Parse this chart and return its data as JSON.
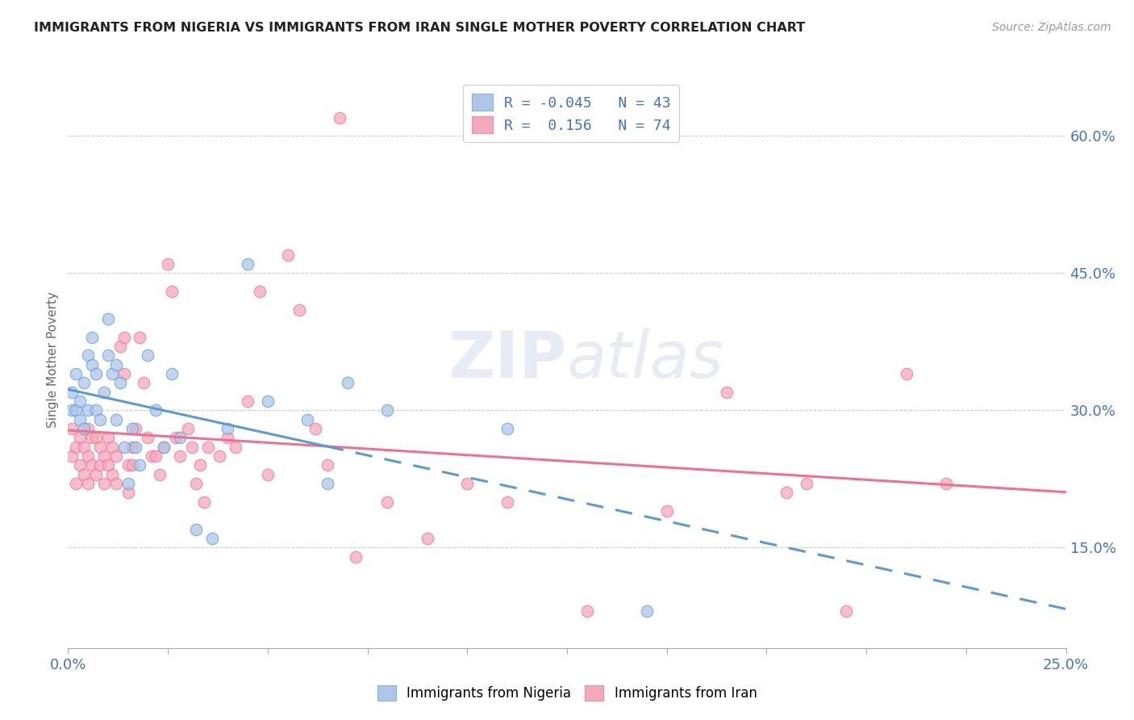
{
  "title": "IMMIGRANTS FROM NIGERIA VS IMMIGRANTS FROM IRAN SINGLE MOTHER POVERTY CORRELATION CHART",
  "source": "Source: ZipAtlas.com",
  "ylabel": "Single Mother Poverty",
  "y_ticks": [
    0.15,
    0.3,
    0.45,
    0.6
  ],
  "y_tick_labels": [
    "15.0%",
    "30.0%",
    "45.0%",
    "60.0%"
  ],
  "xlim": [
    0.0,
    0.25
  ],
  "ylim": [
    0.04,
    0.67
  ],
  "nigeria_R": -0.045,
  "nigeria_N": 43,
  "iran_R": 0.156,
  "iran_N": 74,
  "nigeria_color": "#aec6e8",
  "iran_color": "#f4a9bb",
  "nigeria_line_color": "#5b9bd5",
  "iran_line_color": "#f07090",
  "legend_label_nigeria": "Immigrants from Nigeria",
  "legend_label_iran": "Immigrants from Iran",
  "nigeria_x": [
    0.001,
    0.001,
    0.002,
    0.002,
    0.003,
    0.003,
    0.004,
    0.004,
    0.005,
    0.005,
    0.006,
    0.006,
    0.007,
    0.007,
    0.008,
    0.009,
    0.01,
    0.01,
    0.011,
    0.012,
    0.012,
    0.013,
    0.014,
    0.015,
    0.016,
    0.017,
    0.018,
    0.02,
    0.022,
    0.024,
    0.026,
    0.028,
    0.032,
    0.036,
    0.04,
    0.045,
    0.05,
    0.06,
    0.065,
    0.07,
    0.08,
    0.11,
    0.145
  ],
  "nigeria_y": [
    0.3,
    0.32,
    0.3,
    0.34,
    0.29,
    0.31,
    0.28,
    0.33,
    0.36,
    0.3,
    0.38,
    0.35,
    0.3,
    0.34,
    0.29,
    0.32,
    0.36,
    0.4,
    0.34,
    0.29,
    0.35,
    0.33,
    0.26,
    0.22,
    0.28,
    0.26,
    0.24,
    0.36,
    0.3,
    0.26,
    0.34,
    0.27,
    0.17,
    0.16,
    0.28,
    0.46,
    0.31,
    0.29,
    0.22,
    0.33,
    0.3,
    0.28,
    0.08
  ],
  "iran_x": [
    0.001,
    0.001,
    0.002,
    0.002,
    0.003,
    0.003,
    0.004,
    0.004,
    0.005,
    0.005,
    0.005,
    0.006,
    0.006,
    0.007,
    0.007,
    0.008,
    0.008,
    0.009,
    0.009,
    0.01,
    0.01,
    0.011,
    0.011,
    0.012,
    0.012,
    0.013,
    0.014,
    0.014,
    0.015,
    0.015,
    0.016,
    0.016,
    0.017,
    0.018,
    0.019,
    0.02,
    0.021,
    0.022,
    0.023,
    0.024,
    0.025,
    0.026,
    0.027,
    0.028,
    0.03,
    0.031,
    0.032,
    0.033,
    0.034,
    0.035,
    0.038,
    0.04,
    0.042,
    0.045,
    0.048,
    0.05,
    0.055,
    0.058,
    0.062,
    0.065,
    0.068,
    0.072,
    0.08,
    0.09,
    0.1,
    0.11,
    0.13,
    0.15,
    0.165,
    0.18,
    0.185,
    0.195,
    0.21,
    0.22
  ],
  "iran_y": [
    0.25,
    0.28,
    0.22,
    0.26,
    0.24,
    0.27,
    0.23,
    0.26,
    0.22,
    0.25,
    0.28,
    0.24,
    0.27,
    0.23,
    0.27,
    0.24,
    0.26,
    0.22,
    0.25,
    0.24,
    0.27,
    0.23,
    0.26,
    0.22,
    0.25,
    0.37,
    0.34,
    0.38,
    0.21,
    0.24,
    0.24,
    0.26,
    0.28,
    0.38,
    0.33,
    0.27,
    0.25,
    0.25,
    0.23,
    0.26,
    0.46,
    0.43,
    0.27,
    0.25,
    0.28,
    0.26,
    0.22,
    0.24,
    0.2,
    0.26,
    0.25,
    0.27,
    0.26,
    0.31,
    0.43,
    0.23,
    0.47,
    0.41,
    0.28,
    0.24,
    0.62,
    0.14,
    0.2,
    0.16,
    0.22,
    0.2,
    0.08,
    0.19,
    0.32,
    0.21,
    0.22,
    0.08,
    0.34,
    0.22
  ]
}
